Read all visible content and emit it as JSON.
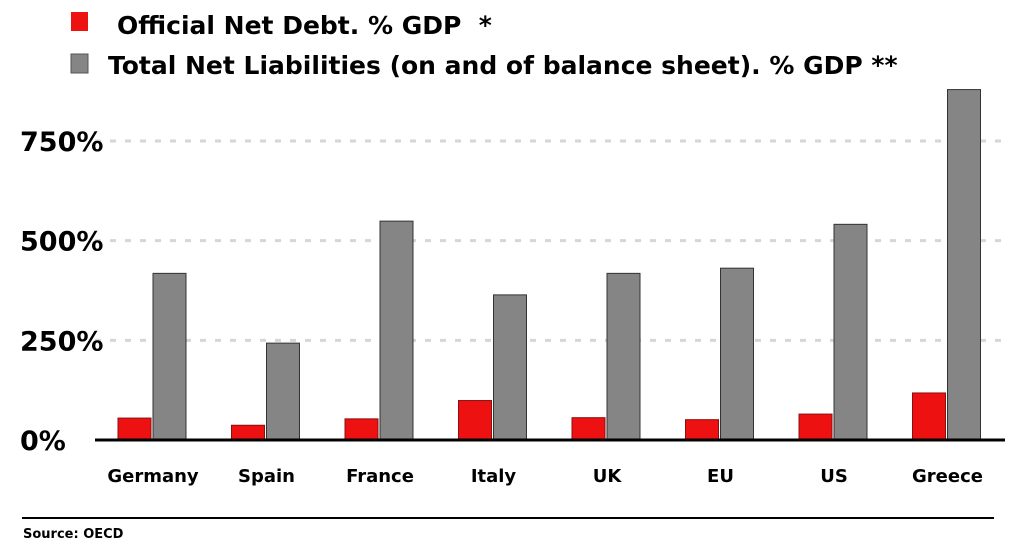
{
  "chart_data": {
    "type": "bar",
    "categories": [
      "Germany",
      "Spain",
      "France",
      "Italy",
      "UK",
      "EU",
      "US",
      "Greece"
    ],
    "series": [
      {
        "name": "Official Net Debt. % GDP  *",
        "color": "#ee1111",
        "values": [
          55,
          37,
          53,
          99,
          56,
          51,
          65,
          118
        ]
      },
      {
        "name": "Total Net Liabilities (on and of balance sheet). % GDP **",
        "color": "#858585",
        "values": [
          418,
          243,
          549,
          364,
          418,
          431,
          541,
          879
        ]
      }
    ],
    "y_ticks": [
      0,
      250,
      500,
      750
    ],
    "y_tick_labels": [
      "0%",
      "250%",
      "500%",
      "750%"
    ],
    "ylim": [
      0,
      900
    ],
    "grid": true,
    "legend_position": "top-left",
    "source": "Source: OECD"
  }
}
